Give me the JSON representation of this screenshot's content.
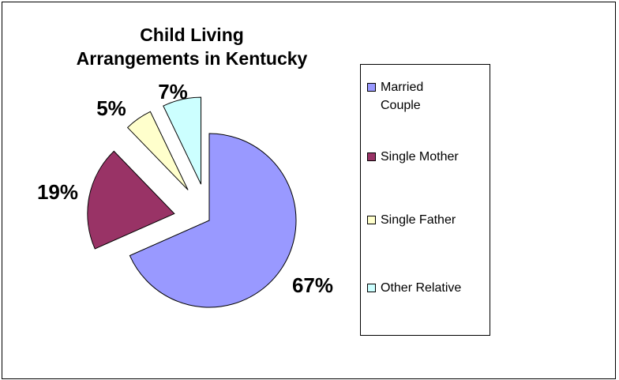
{
  "chart_data": {
    "type": "pie",
    "title_lines": [
      "Child Living",
      "Arrangements in Kentucky"
    ],
    "slices": [
      {
        "label": "Married Couple",
        "legend_lines": [
          "Married",
          "Couple"
        ],
        "value": 67,
        "value_label": "67%",
        "color": "#9999ff"
      },
      {
        "label": "Single Mother",
        "legend_lines": [
          "Single Mother"
        ],
        "value": 19,
        "value_label": "19%",
        "color": "#993366"
      },
      {
        "label": "Single Father",
        "legend_lines": [
          "Single Father"
        ],
        "value": 5,
        "value_label": "5%",
        "color": "#ffffcc"
      },
      {
        "label": "Other Relative",
        "legend_lines": [
          "Other Relative"
        ],
        "value": 7,
        "value_label": "7%",
        "color": "#ccffff"
      }
    ],
    "exploded": true,
    "legend_position": "right"
  }
}
